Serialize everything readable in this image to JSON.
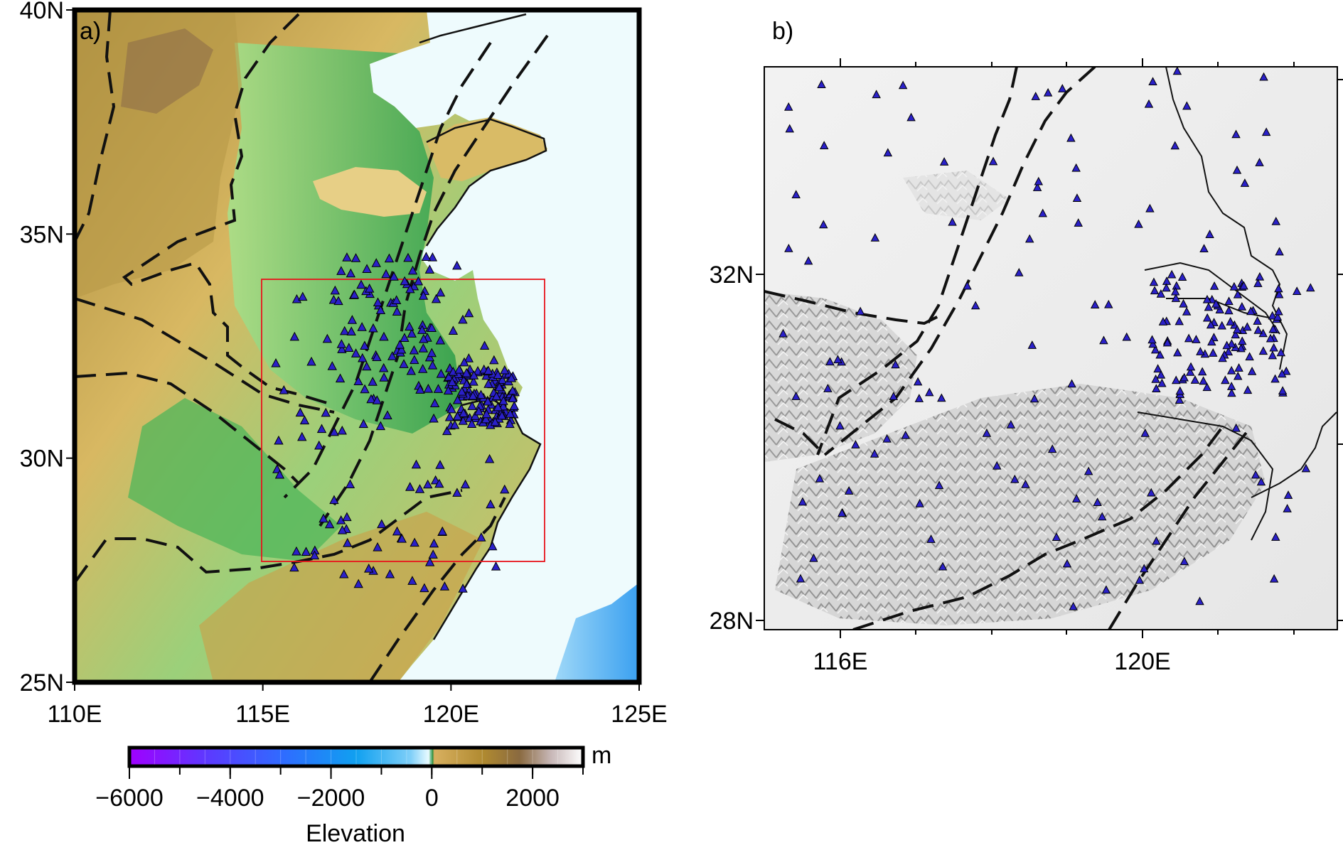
{
  "panel_a": {
    "label": "a)",
    "x_ticks": [
      "110E",
      "115E",
      "120E",
      "125E"
    ],
    "y_ticks": [
      "25N",
      "30N",
      "35N",
      "40N"
    ],
    "colorbar": {
      "unit": "m",
      "title": "Elevation",
      "ticks": [
        "−6000",
        "−4000",
        "−2000",
        "0",
        "2000"
      ]
    }
  },
  "panel_b": {
    "label": "b)",
    "x_ticks": [
      "116E",
      "120E"
    ],
    "y_ticks": [
      "28N",
      "32N"
    ]
  },
  "colors": {
    "station_fill": "#2a20c8",
    "inset_box": "#e8141c",
    "fault_line": "#111111",
    "sea": "#eefbfd",
    "deep_sea": "#3aa0f0"
  },
  "chart_data": [
    {
      "type": "map",
      "panel": "a)",
      "xlim": [
        110,
        125
      ],
      "ylim": [
        25,
        40
      ],
      "colorscale_range_m": [
        -6000,
        3000
      ],
      "inset_box": {
        "lon": [
          115,
          122.5
        ],
        "lat": [
          27.9,
          34.3
        ]
      },
      "marker": "triangle",
      "station_density": "dense cluster around 120-122E, 30-32N; spread over 115.5-122E, 27-34.5N"
    },
    {
      "type": "map",
      "panel": "b)",
      "xlim": [
        115,
        122.5
      ],
      "ylim": [
        27.9,
        34.3
      ],
      "background": "grayscale shaded relief",
      "marker": "triangle"
    }
  ]
}
